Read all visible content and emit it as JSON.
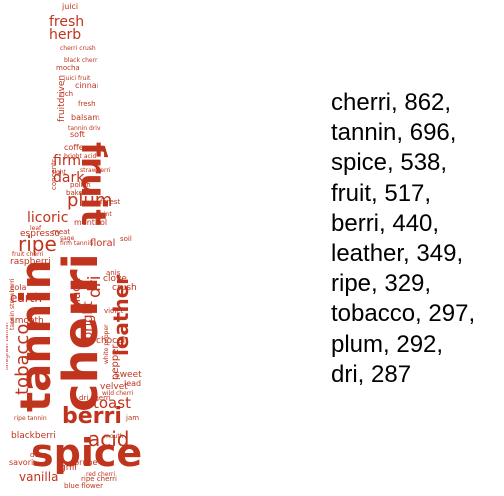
{
  "cloud": {
    "shape": "wine-bottle",
    "color": "#c0331d",
    "words": [
      "cherri",
      "tannin",
      "spice",
      "fruit",
      "berri",
      "leather",
      "ripe",
      "tobacco",
      "plum",
      "dri",
      "acid",
      "toast",
      "fresh",
      "herb",
      "firm",
      "dark",
      "licoric",
      "earth",
      "bright",
      "vanilla",
      "blackberri",
      "raspberri",
      "pepper",
      "black",
      "floral",
      "espresso",
      "clove",
      "velvet",
      "smooth",
      "grill",
      "sweet",
      "chocol",
      "crush",
      "cola",
      "juici",
      "fruitdriven",
      "balsam",
      "cinnamon",
      "coffe",
      "soft",
      "bake",
      "polish",
      "menthol",
      "meat",
      "anis",
      "soil",
      "violet",
      "lead",
      "savori",
      "prune",
      "forest",
      "strawberri",
      "concentr",
      "tannin drive",
      "dri cherri",
      "ripe cherri",
      "black cherri",
      "blue flower",
      "fresh acid",
      "wild cherri",
      "white pepper",
      "fruit cherri",
      "firm tannin",
      "tight",
      "rich",
      "mocha",
      "dens",
      "sage",
      "leaf",
      "mint",
      "juici fruit",
      "mouth",
      "cherri crush",
      "finegrain tannin",
      "bright acid",
      "tannin strawberri",
      "jam",
      "ripe tannin",
      "red cherri"
    ]
  },
  "frequencies": [
    {
      "label": "cherri, 862,"
    },
    {
      "label": "tannin, 696,"
    },
    {
      "label": "spice, 538,"
    },
    {
      "label": "fruit, 517,"
    },
    {
      "label": "berri, 440,"
    },
    {
      "label": "leather, 349,"
    },
    {
      "label": "ripe, 329,"
    },
    {
      "label": "tobacco, 297,"
    },
    {
      "label": "plum, 292,"
    },
    {
      "label": "dri, 287"
    }
  ]
}
